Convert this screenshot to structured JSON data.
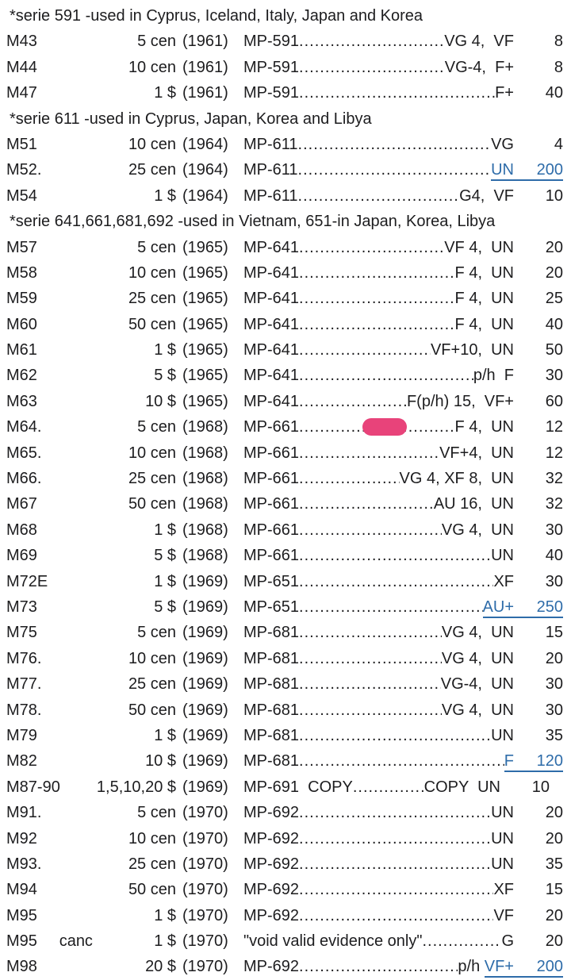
{
  "page": {
    "background_color": "#ffffff",
    "text_color": "#1d1d1f",
    "link_color": "#2e6ca9",
    "marker_color": "#e8437a",
    "document_type": "military-payment-certificate-price-list"
  },
  "sections": [
    {
      "header": "*serie 591 -used in Cyprus, Iceland, Italy, Japan and Korea",
      "rows": [
        {
          "cat": "M43",
          "denom": "5 cen",
          "year": "(1961)",
          "name": "MP-591",
          "grade": "VG 4,  VF",
          "price": "8"
        },
        {
          "cat": "M44",
          "denom": "10 cen",
          "year": "(1961)",
          "name": "MP-591",
          "grade": "VG-4,  F+",
          "price": "8"
        },
        {
          "cat": "M47",
          "denom": "1 $",
          "year": "(1961)",
          "name": "MP-591",
          "grade": "F+",
          "price": "40"
        }
      ]
    },
    {
      "header": "*serie 611 -used in Cyprus, Japan, Korea and Libya",
      "rows": [
        {
          "cat": "M51",
          "denom": "10 cen",
          "year": "(1964)",
          "name": "MP-611",
          "grade": "VG",
          "price": "4"
        },
        {
          "cat": "M52.",
          "denom": "25 cen",
          "year": "(1964)",
          "name": "MP-611",
          "grade": "",
          "grade_link": "UN",
          "price": "200",
          "price_link": true
        },
        {
          "cat": "M54",
          "denom": "1 $",
          "year": "(1964)",
          "name": "MP-611",
          "grade": "G4,  VF",
          "price": "10"
        }
      ]
    },
    {
      "header": "*serie 641,661,681,692 -used in Vietnam, 651-in Japan, Korea, Libya",
      "rows": [
        {
          "cat": "M57",
          "denom": "5 cen",
          "year": "(1965)",
          "name": "MP-641",
          "grade": "VF 4,  UN",
          "price": "20"
        },
        {
          "cat": "M58",
          "denom": "10 cen",
          "year": "(1965)",
          "name": "MP-641",
          "grade": "F 4,  UN",
          "price": "20"
        },
        {
          "cat": "M59",
          "denom": "25 cen",
          "year": "(1965)",
          "name": "MP-641",
          "grade": "F 4,  UN",
          "price": "25"
        },
        {
          "cat": "M60",
          "denom": "50 cen",
          "year": "(1965)",
          "name": "MP-641",
          "grade": "F 4,  UN",
          "price": "40"
        },
        {
          "cat": "M61",
          "denom": "1 $",
          "year": "(1965)",
          "name": "MP-641",
          "grade": "VF+10,  UN",
          "price": "50"
        },
        {
          "cat": "M62",
          "denom": "5 $",
          "year": "(1965)",
          "name": "MP-641",
          "grade": "p/h  F",
          "price": "30"
        },
        {
          "cat": "M63",
          "denom": "10 $",
          "year": "(1965)",
          "name": "MP-641",
          "grade": "F(p/h) 15,  VF+",
          "price": "60"
        },
        {
          "cat": "M64.",
          "denom": "5 cen",
          "year": "(1968)",
          "name": "MP-661",
          "grade": "F 4,  UN",
          "price": "12",
          "marker": true
        },
        {
          "cat": "M65.",
          "denom": "10 cen",
          "year": "(1968)",
          "name": "MP-661",
          "grade": "VF+4,  UN",
          "price": "12"
        },
        {
          "cat": "M66.",
          "denom": "25 cen",
          "year": "(1968)",
          "name": "MP-661",
          "grade": "VG 4, XF 8,  UN",
          "price": "32"
        },
        {
          "cat": "M67",
          "denom": "50 cen",
          "year": "(1968)",
          "name": "MP-661",
          "grade": "AU 16,  UN",
          "price": "32"
        },
        {
          "cat": "M68",
          "denom": "1 $",
          "year": "(1968)",
          "name": "MP-661",
          "grade": "VG 4,  UN",
          "price": "30"
        },
        {
          "cat": "M69",
          "denom": "5 $",
          "year": "(1968)",
          "name": "MP-661",
          "grade": "UN",
          "price": "40"
        },
        {
          "cat": "M72E",
          "denom": "1 $",
          "year": "(1969)",
          "name": "MP-651",
          "grade": "XF",
          "price": "30"
        },
        {
          "cat": "M73",
          "denom": "5 $",
          "year": "(1969)",
          "name": "MP-651",
          "grade": "",
          "grade_link": "AU+",
          "price": "250",
          "price_link": true
        },
        {
          "cat": "M75",
          "denom": "5 cen",
          "year": "(1969)",
          "name": "MP-681",
          "grade": "VG 4,  UN",
          "price": "15"
        },
        {
          "cat": "M76.",
          "denom": "10 cen",
          "year": "(1969)",
          "name": "MP-681",
          "grade": "VG 4,  UN",
          "price": "20"
        },
        {
          "cat": "M77.",
          "denom": "25 cen",
          "year": "(1969)",
          "name": "MP-681",
          "grade": "VG-4,  UN",
          "price": "30"
        },
        {
          "cat": "M78.",
          "denom": "50 cen",
          "year": "(1969)",
          "name": "MP-681",
          "grade": "VG 4,  UN",
          "price": "30"
        },
        {
          "cat": "M79",
          "denom": "1 $",
          "year": "(1969)",
          "name": "MP-681",
          "grade": "UN",
          "price": "35"
        },
        {
          "cat": "M82",
          "denom": "10 $",
          "year": "(1969)",
          "name": "MP-681",
          "grade": "",
          "grade_link": "F",
          "price": "120",
          "price_link": true
        },
        {
          "cat": "M87-90",
          "denom": "1,5,10,20 $",
          "year": "(1969)",
          "name": "MP-691  COPY",
          "grade": "COPY  UN",
          "price": "10",
          "price_pad": 17
        },
        {
          "cat": "M91.",
          "denom": "5 cen",
          "year": "(1970)",
          "name": "MP-692",
          "grade": "UN",
          "price": "20"
        },
        {
          "cat": "M92",
          "denom": "10 cen",
          "year": "(1970)",
          "name": "MP-692",
          "grade": "UN",
          "price": "20"
        },
        {
          "cat": "M93.",
          "denom": "25 cen",
          "year": "(1970)",
          "name": "MP-692",
          "grade": "UN",
          "price": "35"
        },
        {
          "cat": "M94",
          "denom": "50 cen",
          "year": "(1970)",
          "name": "MP-692",
          "grade": "XF",
          "price": "15"
        },
        {
          "cat": "M95",
          "denom": "1 $",
          "year": "(1970)",
          "name": "MP-692",
          "grade": "VF",
          "price": "20"
        },
        {
          "cat": "M95     canc",
          "denom": "1 $",
          "year": "(1970)",
          "name": "\"void valid evidence only\"",
          "grade": "G",
          "price": "20"
        },
        {
          "cat": "M98",
          "denom": "20 $",
          "year": "(1970)",
          "name": "MP-692",
          "grade": "p/h ",
          "grade_link": "VF+",
          "price": "200",
          "price_link": true
        }
      ]
    }
  ]
}
